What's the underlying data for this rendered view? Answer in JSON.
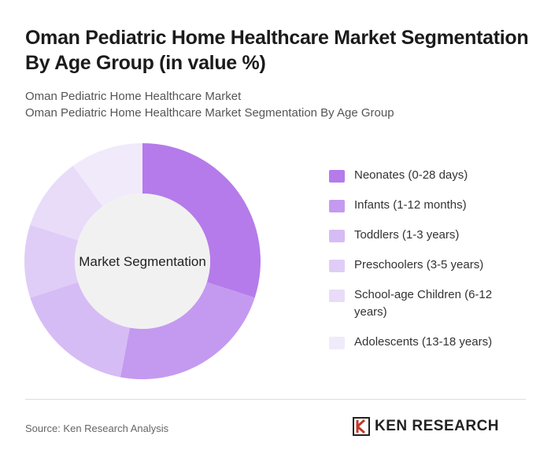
{
  "chart_data": {
    "type": "donut",
    "title": "Oman Pediatric Home Healthcare Market Segmentation By Age Group (in value %)",
    "subtitle": [
      "Oman Pediatric Home Healthcare Market",
      "Oman Pediatric Home Healthcare Market Segmentation By Age Group"
    ],
    "center_label": "Market Segmentation",
    "categories": [
      "Neonates (0-28 days)",
      "Infants (1-12 months)",
      "Toddlers (1-3 years)",
      "Preschoolers (3-5 years)",
      "School-age Children (6-12 years)",
      "Adolescents (13-18 years)"
    ],
    "values": [
      30,
      23,
      17,
      10,
      10,
      10
    ],
    "colors": [
      "#b57bea",
      "#c49af0",
      "#d6bcf5",
      "#e0cdf7",
      "#e8dcf9",
      "#f1eafb"
    ],
    "legend": "right",
    "source": "Source: Ken Research Analysis",
    "logo": "KEN RESEARCH"
  }
}
